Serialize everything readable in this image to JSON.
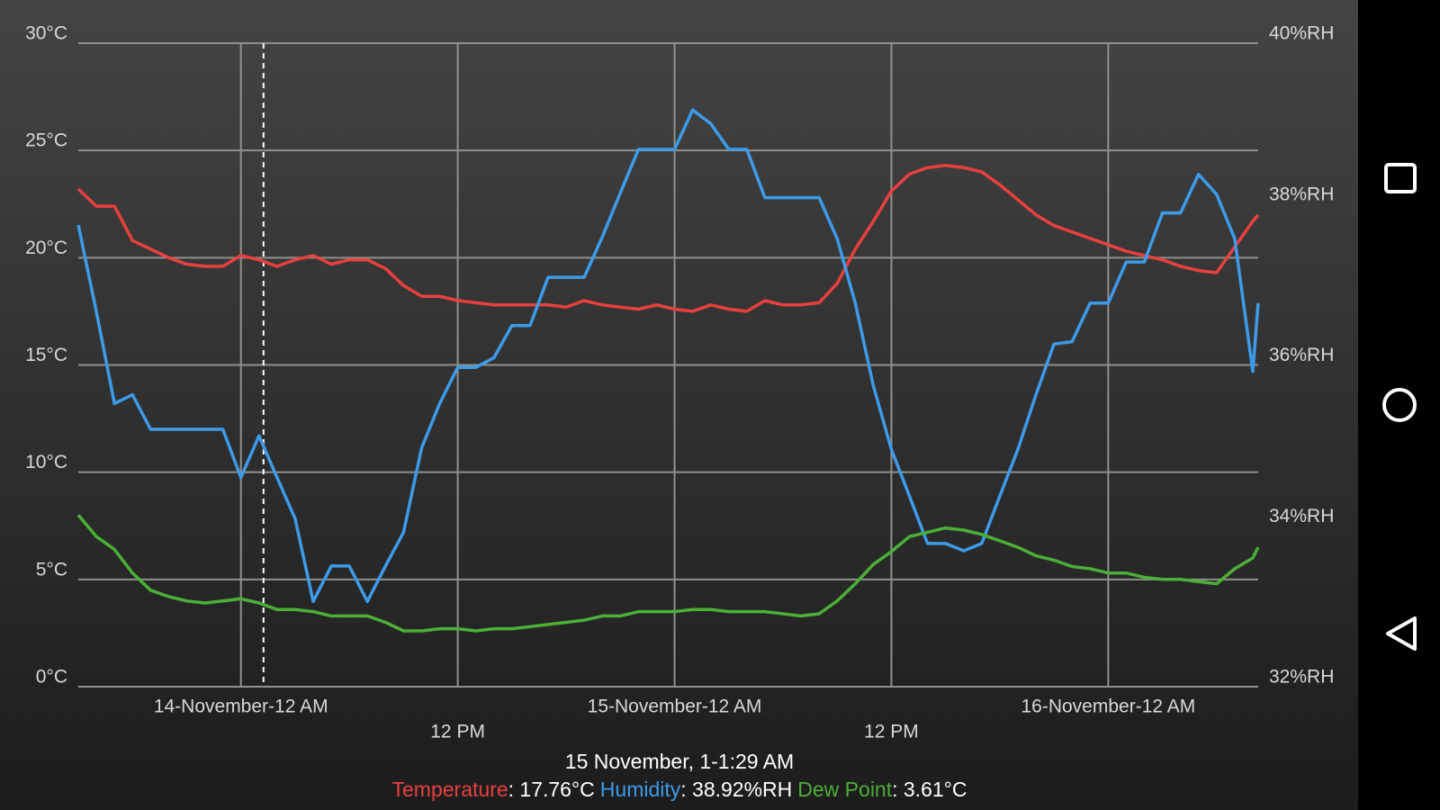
{
  "chart_data": {
    "type": "line",
    "x": [
      -9,
      -8,
      -7,
      -6,
      -5,
      -4,
      -3,
      -2,
      -1,
      0,
      1,
      2,
      3,
      4,
      5,
      6,
      7,
      8,
      9,
      10,
      11,
      12,
      13,
      14,
      15,
      16,
      17,
      18,
      19,
      20,
      21,
      22,
      23,
      24,
      25,
      26,
      27,
      28,
      29,
      30,
      31,
      32,
      33,
      34,
      35,
      36,
      37,
      38,
      39,
      40,
      41,
      42,
      43,
      44,
      45,
      46,
      47,
      48,
      49,
      50,
      51,
      52,
      53,
      54,
      55,
      56,
      56.3
    ],
    "xlim": [
      -9,
      56.3
    ],
    "xticks": [
      {
        "value": 0,
        "label": "14-November-12 AM"
      },
      {
        "value": 12,
        "label": "12 PM"
      },
      {
        "value": 24,
        "label": "15-November-12 AM"
      },
      {
        "value": 36,
        "label": "12 PM"
      },
      {
        "value": 48,
        "label": "16-November-12 AM"
      }
    ],
    "ylim": [
      0,
      30
    ],
    "yticks": [
      {
        "value": 0,
        "label": "0°C"
      },
      {
        "value": 5,
        "label": "5°C"
      },
      {
        "value": 10,
        "label": "10°C"
      },
      {
        "value": 15,
        "label": "15°C"
      },
      {
        "value": 20,
        "label": "20°C"
      },
      {
        "value": 25,
        "label": "25°C"
      },
      {
        "value": 30,
        "label": "30°C"
      }
    ],
    "y2lim": [
      32,
      40
    ],
    "y2ticks": [
      {
        "value": 32,
        "label": "32%RH"
      },
      {
        "value": 34,
        "label": "34%RH"
      },
      {
        "value": 36,
        "label": "36%RH"
      },
      {
        "value": 38,
        "label": "38%RH"
      },
      {
        "value": 40,
        "label": "40%RH"
      }
    ],
    "grid": true,
    "cursor_x": 1.25,
    "cursor_label": "15 November, 1-1:29 AM",
    "series": [
      {
        "name": "Temperature",
        "color": "#e8403f",
        "readout": ": 17.76°C",
        "values": [
          23.2,
          22.4,
          22.4,
          20.8,
          20.4,
          20.0,
          19.7,
          19.6,
          19.6,
          20.1,
          19.9,
          19.6,
          19.9,
          20.1,
          19.7,
          19.9,
          19.9,
          19.5,
          18.7,
          18.2,
          18.2,
          18.0,
          17.9,
          17.8,
          17.8,
          17.8,
          17.8,
          17.7,
          18.0,
          17.8,
          17.7,
          17.6,
          17.8,
          17.6,
          17.5,
          17.8,
          17.6,
          17.5,
          18.0,
          17.8,
          17.8,
          17.9,
          18.8,
          20.4,
          21.7,
          23.1,
          23.9,
          24.2,
          24.3,
          24.2,
          24.0,
          23.4,
          22.7,
          22.0,
          21.5,
          21.2,
          20.9,
          20.6,
          20.3,
          20.1,
          19.9,
          19.6,
          19.4,
          19.3,
          20.5,
          21.7,
          22.0
        ]
      },
      {
        "name": "Humidity",
        "color": "#3d9be9",
        "axis": "y2",
        "readout": ": 38.92%RH",
        "values": [
          37.74,
          36.66,
          35.52,
          35.63,
          35.2,
          35.2,
          35.2,
          35.2,
          35.2,
          34.6,
          35.12,
          34.6,
          34.09,
          33.06,
          33.5,
          33.5,
          33.06,
          33.5,
          33.92,
          34.97,
          35.52,
          35.97,
          35.97,
          36.09,
          36.49,
          36.49,
          37.09,
          37.09,
          37.09,
          37.59,
          38.14,
          38.68,
          38.68,
          38.68,
          39.17,
          39.0,
          38.68,
          38.68,
          38.08,
          38.08,
          38.08,
          38.08,
          37.57,
          36.77,
          35.74,
          34.95,
          34.37,
          33.78,
          33.78,
          33.69,
          33.78,
          34.37,
          34.95,
          35.63,
          36.26,
          36.29,
          36.77,
          36.77,
          37.28,
          37.28,
          37.89,
          37.89,
          38.37,
          38.12,
          37.57,
          35.92,
          36.77
        ]
      },
      {
        "name": "Dew Point",
        "color": "#4caf37",
        "readout": ": 3.61°C",
        "values": [
          8.0,
          7.0,
          6.4,
          5.3,
          4.5,
          4.2,
          4.0,
          3.9,
          4.0,
          4.1,
          3.9,
          3.6,
          3.6,
          3.5,
          3.3,
          3.3,
          3.3,
          3.0,
          2.6,
          2.6,
          2.7,
          2.7,
          2.6,
          2.7,
          2.7,
          2.8,
          2.9,
          3.0,
          3.1,
          3.3,
          3.3,
          3.5,
          3.5,
          3.5,
          3.6,
          3.6,
          3.5,
          3.5,
          3.5,
          3.4,
          3.3,
          3.4,
          4.0,
          4.8,
          5.7,
          6.3,
          7.0,
          7.2,
          7.4,
          7.3,
          7.1,
          6.8,
          6.5,
          6.1,
          5.9,
          5.6,
          5.5,
          5.3,
          5.3,
          5.1,
          5.0,
          5.0,
          4.9,
          4.8,
          5.5,
          6.0,
          6.5
        ]
      }
    ]
  }
}
